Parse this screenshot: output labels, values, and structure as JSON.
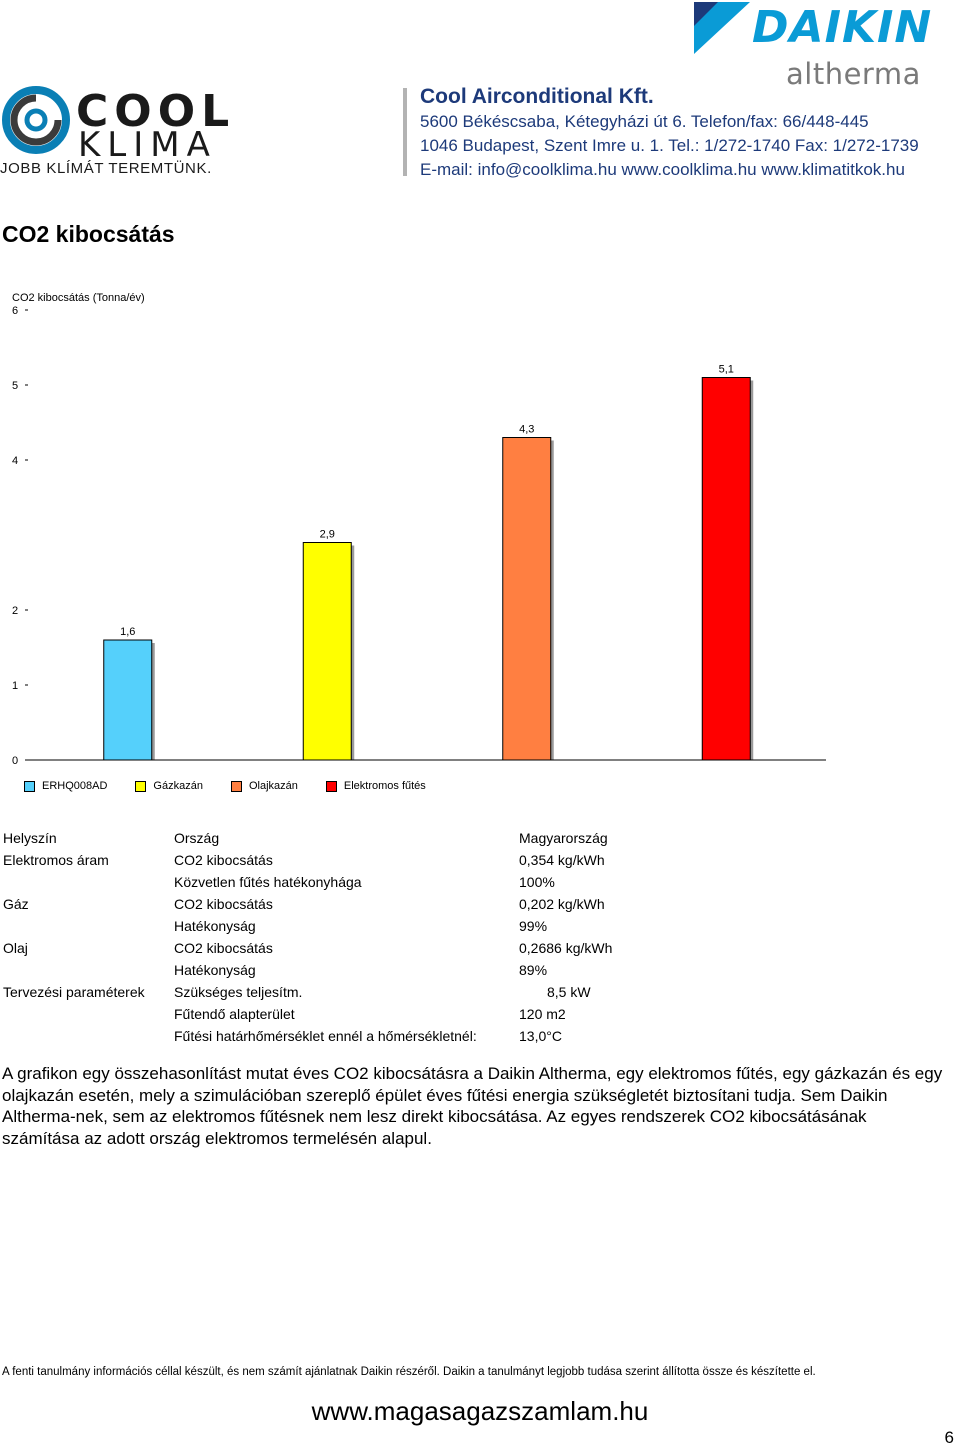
{
  "header": {
    "cool_logo": {
      "word1": "COOL",
      "word2": "KLIMA",
      "tagline": "JOBB KLÍMÁT TEREMTÜNK."
    },
    "company": {
      "name": "Cool Airconditional Kft.",
      "lines": [
        "5600 Békéscsaba, Kétegyházi út 6.  Telefon/fax: 66/448-445",
        "1046 Budapest, Szent Imre u. 1.  Tel.: 1/272-1740  Fax: 1/272-1739",
        "E-mail: info@coolklima.hu  www.coolklima.hu  www.klimatitkok.hu"
      ]
    },
    "daikin_logo": {
      "word": "DAIKIN",
      "subword": "altherma"
    }
  },
  "title": "CO2 kibocsátás",
  "chart_data": {
    "type": "bar",
    "title": "",
    "ylabel": "CO2 kibocsátás (Tonna/év)",
    "xlabel": "",
    "ylim": [
      0,
      6
    ],
    "yticks": [
      {
        "label": "0",
        "value": 0
      },
      {
        "label": "1",
        "value": 1
      },
      {
        "label": "2",
        "value": 2
      },
      {
        "label": "4",
        "value": 4
      },
      {
        "label": "5",
        "value": 5
      },
      {
        "label": "6",
        "value": 6
      }
    ],
    "categories": [
      "ERHQ008AD",
      "Gázkazán",
      "Olajkazán",
      "Elektromos fűtés"
    ],
    "values": [
      1.6,
      2.9,
      4.3,
      5.1
    ],
    "value_labels": [
      "1,6",
      "2,9",
      "4,3",
      "5,1"
    ],
    "colors": [
      "#55d0fb",
      "#ffff00",
      "#ff7f41",
      "#ff0000"
    ],
    "legend_position": "bottom",
    "grid": false
  },
  "legend": [
    {
      "label": "ERHQ008AD",
      "color": "#55d0fb"
    },
    {
      "label": "Gázkazán",
      "color": "#ffff00"
    },
    {
      "label": "Olajkazán",
      "color": "#ff7f41"
    },
    {
      "label": "Elektromos fűtés",
      "color": "#ff0000"
    }
  ],
  "params": {
    "header": {
      "c1": "Helyszín",
      "c2": "Ország",
      "c3": "Magyarország"
    },
    "rows": [
      {
        "c1": "Elektromos áram",
        "c2": "CO2 kibocsátás",
        "c3": "0,354 kg/kWh"
      },
      {
        "c1": "",
        "c2": "Közvetlen fűtés hatékonyhága",
        "c3": "100%"
      },
      {
        "c1": "Gáz",
        "c2": "CO2 kibocsátás",
        "c3": "0,202 kg/kWh"
      },
      {
        "c1": "",
        "c2": "Hatékonyság",
        "c3": "99%"
      },
      {
        "c1": "Olaj",
        "c2": "CO2 kibocsátás",
        "c3": "0,2686 kg/kWh"
      },
      {
        "c1": "",
        "c2": "Hatékonyság",
        "c3": "89%"
      },
      {
        "c1": "Tervezési paraméterek",
        "c2": "Szükséges teljesítm.",
        "c3": "8,5 kW"
      },
      {
        "c1": "",
        "c2": "Fűtendő alapterület",
        "c3": "120 m2"
      },
      {
        "c1": "",
        "c2": "Fűtési határhőmérséklet ennél a hőmérsékletnél:",
        "c3": "13,0°C"
      }
    ]
  },
  "description": "A grafikon egy összehasonlítást mutat éves CO2 kibocsátásra a Daikin Altherma, egy elektromos fűtés, egy gázkazán és egy olajkazán esetén, mely a szimulációban szereplő épület éves fűtési energia szükségletét biztosítani tudja. Sem Daikin Altherma-nek, sem az elektromos fűtésnek nem lesz direkt kibocsátása. Az egyes rendszerek CO2 kibocsátásának számítása az adott ország elektromos termelésén alapul.",
  "footer": {
    "disclaimer": "A fenti tanulmány információs céllal készült, és nem számít ajánlatnak Daikin részéről. Daikin a tanulmányt legjobb tudása szerint állította össze és készítette el.",
    "website": "www.magasagazszamlam.hu",
    "page_number": "6"
  }
}
